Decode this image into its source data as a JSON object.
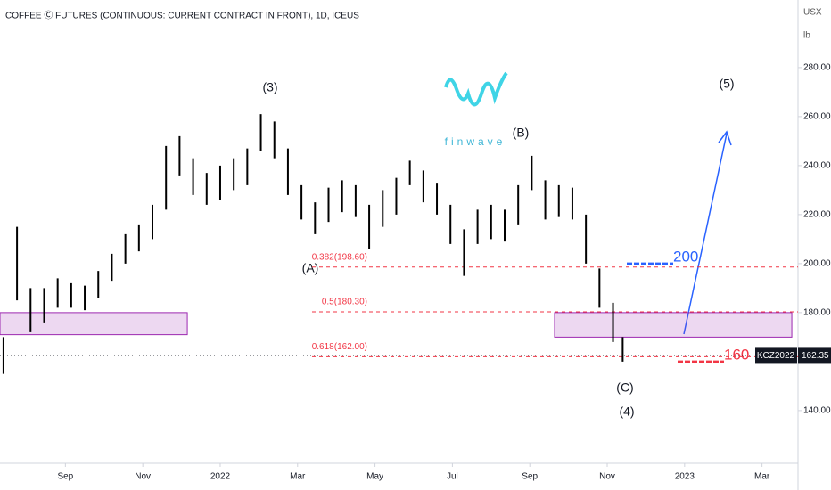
{
  "chart_data": {
    "type": "ohlc",
    "title": "COFFEE Ⓒ FUTURES (CONTINUOUS: CURRENT CONTRACT IN FRONT), 1D, ICEUS",
    "y_unit": [
      "USX",
      "lb"
    ],
    "x": [
      -5.6,
      -5.25,
      -4.9,
      -4.55,
      -4.2,
      -3.85,
      -3.5,
      -3.15,
      -2.8,
      -2.45,
      -2.1,
      -1.75,
      -1.4,
      -1.05,
      -0.7,
      -0.35,
      0,
      0.35,
      0.7,
      1.05,
      1.4,
      1.75,
      2.1,
      2.45,
      2.8,
      3.15,
      3.5,
      3.85,
      4.2,
      4.55,
      4.9,
      5.25,
      5.6,
      5.95,
      6.3,
      6.65,
      7.0,
      7.35,
      7.7,
      8.05,
      8.4,
      8.75,
      9.1,
      9.45,
      9.8,
      10.15,
      10.4
    ],
    "high": [
      170,
      215,
      190,
      190,
      194,
      192,
      191,
      197,
      204,
      212,
      216,
      224,
      248,
      252,
      243,
      237,
      240,
      243,
      247,
      261,
      258,
      247,
      232,
      225,
      231,
      234,
      232,
      224,
      230,
      235,
      242,
      238,
      233,
      224,
      214,
      222,
      224,
      222,
      232,
      244,
      234,
      232,
      231,
      220,
      198,
      184,
      170
    ],
    "low": [
      155,
      185,
      172,
      176,
      182,
      182,
      181,
      186,
      193,
      200,
      205,
      210,
      222,
      236,
      228,
      224,
      226,
      230,
      232,
      246,
      243,
      228,
      218,
      212,
      217,
      221,
      219,
      206,
      215,
      220,
      232,
      225,
      220,
      208,
      195,
      208,
      210,
      209,
      216,
      230,
      218,
      219,
      218,
      200,
      182,
      168,
      160
    ],
    "color": "#000000",
    "xlim": [
      -5.69,
      14.93
    ],
    "xticks": [
      {
        "value": -4,
        "label": "Sep"
      },
      {
        "value": -2,
        "label": "Nov"
      },
      {
        "value": 0,
        "label": "2022"
      },
      {
        "value": 2,
        "label": "Mar"
      },
      {
        "value": 4,
        "label": "May"
      },
      {
        "value": 6,
        "label": "Jul"
      },
      {
        "value": 8,
        "label": "Sep"
      },
      {
        "value": 10,
        "label": "Nov"
      },
      {
        "value": 12,
        "label": "2023"
      },
      {
        "value": 14,
        "label": "Mar"
      }
    ],
    "ylim": [
      118.5,
      307.6
    ],
    "yticks": [
      {
        "value": 140,
        "label": "140.00"
      },
      {
        "value": 180,
        "label": "180.00"
      },
      {
        "value": 200,
        "label": "200.00"
      },
      {
        "value": 220,
        "label": "220.00"
      },
      {
        "value": 240,
        "label": "240.00"
      },
      {
        "value": 260,
        "label": "260.00"
      },
      {
        "value": 280,
        "label": "280.00"
      }
    ],
    "fib_levels": [
      {
        "label": "0.382(198.60)",
        "value": 198.6
      },
      {
        "label": "0.5(180.30)",
        "value": 180.3
      },
      {
        "label": "0.618(162.00)",
        "value": 162.0
      }
    ],
    "zones": [
      {
        "low": 171,
        "high": 180,
        "x": [
          -5.69,
          -0.85
        ]
      },
      {
        "low": 170,
        "high": 180,
        "x": [
          8.64,
          14.77
        ]
      }
    ],
    "targets": [
      200,
      160
    ],
    "last_price": {
      "symbol": "KCZ2022",
      "value": 162.35
    },
    "wave_labels": [
      "(3)",
      "(5)",
      "(A)",
      "(B)",
      "(C)",
      "(4)"
    ],
    "logo": "finwave"
  }
}
